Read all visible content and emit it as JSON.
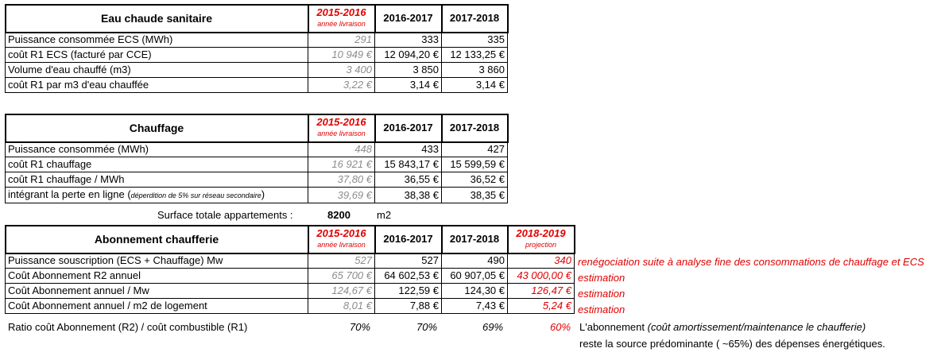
{
  "ecs": {
    "title": "Eau chaude sanitaire",
    "year1": "2015-2016",
    "year1_sub": "année livraison",
    "year2": "2016-2017",
    "year3": "2017-2018",
    "rows": [
      {
        "label": "Puissance consommée ECS (MWh)",
        "v1": "291",
        "v2": "333",
        "v3": "335"
      },
      {
        "label": "coût R1 ECS (facturé par CCE)",
        "v1": "10 949 €",
        "v2": "12 094,20 €",
        "v3": "12 133,25 €"
      },
      {
        "label": "Volume d'eau chauffé (m3)",
        "v1": "3 400",
        "v2": "3 850",
        "v3": "3 860"
      },
      {
        "label": "coût R1 par m3 d'eau chauffée",
        "v1": "3,22 €",
        "v2": "3,14 €",
        "v3": "3,14 €"
      }
    ]
  },
  "chauffage": {
    "title": "Chauffage",
    "year1": "2015-2016",
    "year1_sub": "année livraison",
    "year2": "2016-2017",
    "year3": "2017-2018",
    "rows": [
      {
        "label": "Puissance consommée (MWh)",
        "v1": "448",
        "v2": "433",
        "v3": "427"
      },
      {
        "label": "coût R1 chauffage",
        "v1": "16 921 €",
        "v2": "15 843,17 €",
        "v3": "15 599,59 €"
      },
      {
        "label": "coût R1 chauffage / MWh",
        "v1": "37,80 €",
        "v2": "36,55 €",
        "v3": "36,52 €"
      },
      {
        "label": "intégrant la perte en ligne (",
        "label_small": "déperdition de 5% sur réseau secondaire",
        "label_end": ")",
        "v1": "39,69 €",
        "v2": "38,38 €",
        "v3": "38,35 €"
      }
    ]
  },
  "surface": {
    "label": "Surface totale appartements :",
    "value": "8200",
    "unit": "m2"
  },
  "abonnement": {
    "title": "Abonnement chaufferie",
    "year1": "2015-2016",
    "year1_sub": "année livraison",
    "year2": "2016-2017",
    "year3": "2017-2018",
    "year4": "2018-2019",
    "year4_sub": "projection",
    "rows": [
      {
        "label": "Puissance souscription (ECS + Chauffage) Mw",
        "v1": "527",
        "v2": "527",
        "v3": "490",
        "v4": "340",
        "note": "renégociation suite à analyse fine des consommations de chauffage et ECS"
      },
      {
        "label": "Coût Abonnement R2 annuel",
        "v1": "65 700 €",
        "v2": "64 602,53 €",
        "v3": "60 907,05 €",
        "v4": "43 000,00 €",
        "note": "estimation"
      },
      {
        "label": "Coût Abonnement annuel / Mw",
        "v1": "124,67 €",
        "v2": "122,59 €",
        "v3": "124,30 €",
        "v4": "126,47 €",
        "note": "estimation"
      },
      {
        "label": "Coût Abonnement annuel / m2 de logement",
        "v1": "8,01 €",
        "v2": "7,88 €",
        "v3": "7,43 €",
        "v4": "5,24 €",
        "note": "estimation"
      }
    ]
  },
  "ratio": {
    "label": "Ratio coût Abonnement (R2) / coût combustible (R1)",
    "v1": "70%",
    "v2": "70%",
    "v3": "69%",
    "v4": "60%",
    "comment1_a": "L'abonnement ",
    "comment1_b": "(coût amortissement/maintenance le chaufferie)",
    "comment2": "reste la source prédominante ( ~65%) des dépenses énergétiques."
  }
}
